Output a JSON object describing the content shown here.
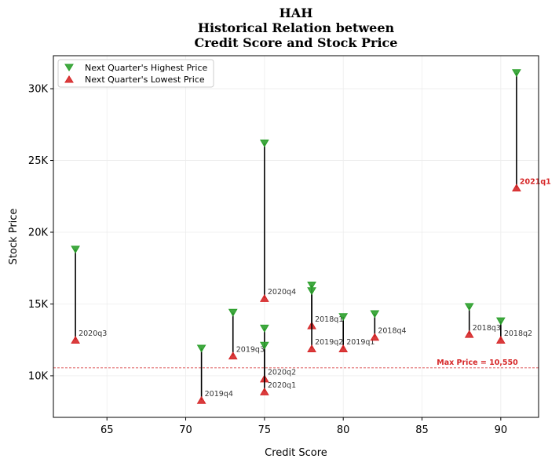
{
  "chart_data": {
    "type": "scatter",
    "title_lines": [
      "HAH",
      "Historical Relation between",
      "Credit Score and Stock Price"
    ],
    "xlabel": "Credit Score",
    "ylabel": "Stock Price",
    "xlim": [
      61.6,
      92.4
    ],
    "ylim": [
      7100,
      32300
    ],
    "x_ticks": [
      65,
      70,
      75,
      80,
      85,
      90
    ],
    "x_tick_labels": [
      "65",
      "70",
      "75",
      "80",
      "85",
      "90"
    ],
    "y_ticks": [
      10000,
      15000,
      20000,
      25000,
      30000
    ],
    "y_tick_labels": [
      "10K",
      "15K",
      "20K",
      "25K",
      "30K"
    ],
    "grid": true,
    "legend": {
      "position": "top-left",
      "entries": [
        {
          "label": "Next Quarter's Highest Price",
          "marker": "triangle-down",
          "color": "#2ca02c"
        },
        {
          "label": "Next Quarter's Lowest Price",
          "marker": "triangle-up",
          "color": "#d62728"
        }
      ]
    },
    "points": [
      {
        "label": "2020q3",
        "x": 63,
        "high": 18800,
        "low": 12500,
        "highlight": false
      },
      {
        "label": "2019q4",
        "x": 71,
        "high": 11900,
        "low": 8300,
        "highlight": false
      },
      {
        "label": "2019q3",
        "x": 73,
        "high": 14400,
        "low": 11400,
        "highlight": false
      },
      {
        "label": "2020q4",
        "x": 75,
        "high": 26200,
        "low": 15400,
        "highlight": false
      },
      {
        "label": "2020q2",
        "x": 75,
        "high": 13300,
        "low": 9800,
        "highlight": false
      },
      {
        "label": "2020q1",
        "x": 75,
        "high": 12100,
        "low": 8900,
        "highlight": false
      },
      {
        "label": "2018q1",
        "x": 78,
        "high": 16300,
        "low": 13500,
        "highlight": false
      },
      {
        "label": "2019q2",
        "x": 78,
        "high": 15900,
        "low": 11900,
        "highlight": false
      },
      {
        "label": "2019q1",
        "x": 80,
        "high": 14100,
        "low": 11900,
        "highlight": false
      },
      {
        "label": "2018q4",
        "x": 82,
        "high": 14300,
        "low": 12700,
        "highlight": false
      },
      {
        "label": "2018q3",
        "x": 88,
        "high": 14800,
        "low": 12900,
        "highlight": false
      },
      {
        "label": "2018q2",
        "x": 90,
        "high": 13800,
        "low": 12500,
        "highlight": false
      },
      {
        "label": "2021q1",
        "x": 91,
        "high": 31100,
        "low": 23100,
        "highlight": true
      }
    ],
    "max_price_line": {
      "value": 10550,
      "label": "Max Price = 10,550",
      "color": "#d62728"
    }
  }
}
